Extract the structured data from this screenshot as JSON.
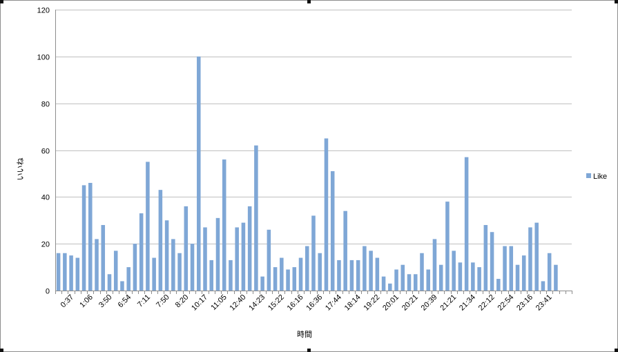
{
  "chart_data": {
    "type": "bar",
    "title": "",
    "xlabel": "時間",
    "ylabel": "いいね",
    "ylim": [
      0,
      120
    ],
    "yticks": [
      0,
      20,
      40,
      60,
      80,
      100,
      120
    ],
    "grid": true,
    "legend_position": "right",
    "colors": {
      "bar": "#7fa7d6",
      "grid": "#bfbfbf",
      "axis": "#8c8c8c"
    },
    "x_tick_labels": [
      "0:37",
      "1:06",
      "3:50",
      "6:54",
      "7:11",
      "7:50",
      "8:20",
      "10:17",
      "11:05",
      "12:40",
      "14:23",
      "15:22",
      "16:16",
      "16:36",
      "17:44",
      "18:14",
      "19:22",
      "20:01",
      "20:21",
      "20:39",
      "21:21",
      "21:34",
      "22:12",
      "22:54",
      "23:16",
      "23:41"
    ],
    "series": [
      {
        "name": "Like",
        "values": [
          16,
          16,
          15,
          14,
          45,
          46,
          22,
          28,
          7,
          17,
          4,
          10,
          20,
          33,
          55,
          14,
          43,
          30,
          22,
          16,
          36,
          20,
          100,
          27,
          13,
          31,
          56,
          13,
          27,
          29,
          36,
          62,
          6,
          26,
          10,
          14,
          9,
          10,
          14,
          19,
          32,
          16,
          65,
          51,
          13,
          34,
          13,
          13,
          19,
          17,
          14,
          6,
          3,
          9,
          11,
          7,
          7,
          16,
          9,
          22,
          11,
          38,
          17,
          12,
          57,
          12,
          10,
          28,
          25,
          5,
          19,
          19,
          11,
          15,
          27,
          29,
          4,
          16,
          11
        ]
      }
    ]
  }
}
